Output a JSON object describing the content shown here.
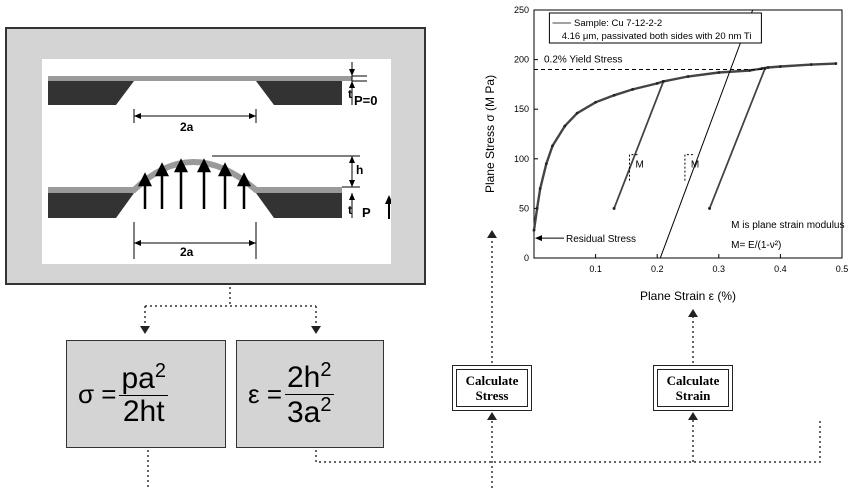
{
  "schematic": {
    "label_2a_top": "2a",
    "label_2a_bottom": "2a",
    "label_t_top": "t",
    "label_t_bottom": "t",
    "label_h": "h",
    "label_p0": "P=0",
    "label_p": "P"
  },
  "equations": {
    "stress": {
      "lhs": "σ =",
      "num": "pa",
      "num_exp": "2",
      "den": "2ht"
    },
    "strain": {
      "lhs": "ε =",
      "num": "2h",
      "num_exp": "2",
      "den": "3a",
      "den_exp": "2"
    }
  },
  "buttons": {
    "calc_stress": [
      "Calculate",
      "Stress"
    ],
    "calc_strain": [
      "Calculate",
      "Strain"
    ]
  },
  "chart_data": {
    "type": "line",
    "xlabel": "Plane Strain ε (%)",
    "ylabel": "Plane Stress σ (M Pa)",
    "xlim": [
      0,
      0.5
    ],
    "ylim": [
      0,
      250
    ],
    "xticks": [
      "0.1",
      "0.2",
      "0.3",
      "0.4",
      "0.5"
    ],
    "yticks": [
      "0",
      "50",
      "100",
      "150",
      "200",
      "250"
    ],
    "legend": {
      "sample": "Sample: Cu 7-12-2-2",
      "detail": "4.16 μm, passivated both sides with 20 nm Ti"
    },
    "annotations": {
      "yield": "0.2% Yield Stress",
      "yield_value": 190,
      "residual": "Residual Stress",
      "modulus_1": "M is plane strain modulus",
      "modulus_2": "M= E/(1-ν²)",
      "m_label_1": "M",
      "m_label_2": "M"
    },
    "series": [
      {
        "values": [
          [
            0.0,
            28
          ],
          [
            0.005,
            50
          ],
          [
            0.01,
            70
          ],
          [
            0.02,
            95
          ],
          [
            0.03,
            113
          ],
          [
            0.05,
            133
          ],
          [
            0.07,
            146
          ],
          [
            0.1,
            157
          ],
          [
            0.13,
            164
          ],
          [
            0.16,
            170
          ],
          [
            0.2,
            176
          ],
          [
            0.21,
            178
          ],
          [
            0.25,
            183
          ],
          [
            0.3,
            187
          ],
          [
            0.35,
            189
          ],
          [
            0.37,
            191
          ],
          [
            0.38,
            192
          ],
          [
            0.4,
            193
          ],
          [
            0.45,
            195
          ],
          [
            0.49,
            196
          ]
        ]
      },
      {
        "values": [
          [
            0.21,
            178
          ],
          [
            0.13,
            50
          ]
        ]
      },
      {
        "values": [
          [
            0.13,
            50
          ],
          [
            0.21,
            178
          ]
        ]
      },
      {
        "values": [
          [
            0.375,
            191
          ],
          [
            0.285,
            50
          ]
        ]
      },
      {
        "values": [
          [
            0.285,
            50
          ],
          [
            0.375,
            191
          ]
        ]
      }
    ],
    "modulus_line": [
      [
        0.205,
        0
      ],
      [
        0.355,
        250
      ]
    ]
  }
}
